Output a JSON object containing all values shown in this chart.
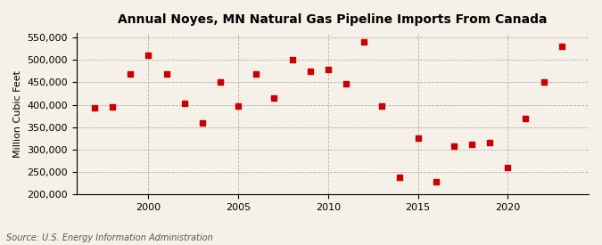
{
  "title": "Annual Noyes, MN Natural Gas Pipeline Imports From Canada",
  "ylabel": "Million Cubic Feet",
  "source": "Source: U.S. Energy Information Administration",
  "background_color": "#f5f0e8",
  "marker_color": "#cc0000",
  "years": [
    1997,
    1998,
    1999,
    2000,
    2001,
    2002,
    2003,
    2004,
    2005,
    2006,
    2007,
    2008,
    2009,
    2010,
    2011,
    2012,
    2013,
    2014,
    2015,
    2016,
    2017,
    2018,
    2019,
    2020,
    2021,
    2022,
    2023
  ],
  "values": [
    393000,
    395000,
    468000,
    510000,
    468000,
    403000,
    360000,
    450000,
    398000,
    468000,
    415000,
    500000,
    475000,
    478000,
    447000,
    540000,
    398000,
    239000,
    325000,
    228000,
    308000,
    312000,
    315000,
    260000,
    370000,
    450000,
    530000
  ],
  "ylim": [
    200000,
    560000
  ],
  "yticks": [
    200000,
    250000,
    300000,
    350000,
    400000,
    450000,
    500000,
    550000
  ],
  "xticks": [
    2000,
    2005,
    2010,
    2015,
    2020
  ],
  "xlim": [
    1996.0,
    2024.5
  ]
}
